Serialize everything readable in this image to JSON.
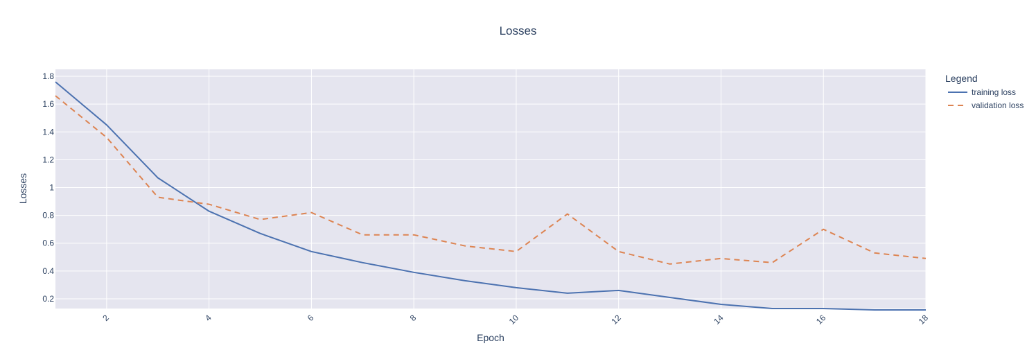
{
  "chart_data": {
    "type": "line",
    "title": "Losses",
    "xlabel": "Epoch",
    "ylabel": "Losses",
    "xlim": [
      1,
      18
    ],
    "ylim": [
      0.13,
      1.85
    ],
    "x_ticks": [
      2,
      4,
      6,
      8,
      10,
      12,
      14,
      16,
      18
    ],
    "y_ticks": [
      0.2,
      0.4,
      0.6,
      0.8,
      1,
      1.2,
      1.4,
      1.6,
      1.8
    ],
    "grid": true,
    "legend": {
      "title": "Legend",
      "placement": "right"
    },
    "x": [
      1,
      2,
      3,
      4,
      5,
      6,
      7,
      8,
      9,
      10,
      11,
      12,
      13,
      14,
      15,
      16,
      17,
      18
    ],
    "series": [
      {
        "name": "training loss",
        "color": "#4c72b0",
        "dash": "solid",
        "values": [
          1.76,
          1.45,
          1.07,
          0.83,
          0.67,
          0.54,
          0.46,
          0.39,
          0.33,
          0.28,
          0.24,
          0.26,
          0.21,
          0.16,
          0.13,
          0.13,
          0.12,
          0.12
        ]
      },
      {
        "name": "validation loss",
        "color": "#dd8452",
        "dash": "dashed",
        "values": [
          1.66,
          1.36,
          0.93,
          0.88,
          0.77,
          0.82,
          0.66,
          0.66,
          0.58,
          0.54,
          0.81,
          0.54,
          0.45,
          0.49,
          0.46,
          0.7,
          0.53,
          0.49
        ]
      }
    ]
  }
}
